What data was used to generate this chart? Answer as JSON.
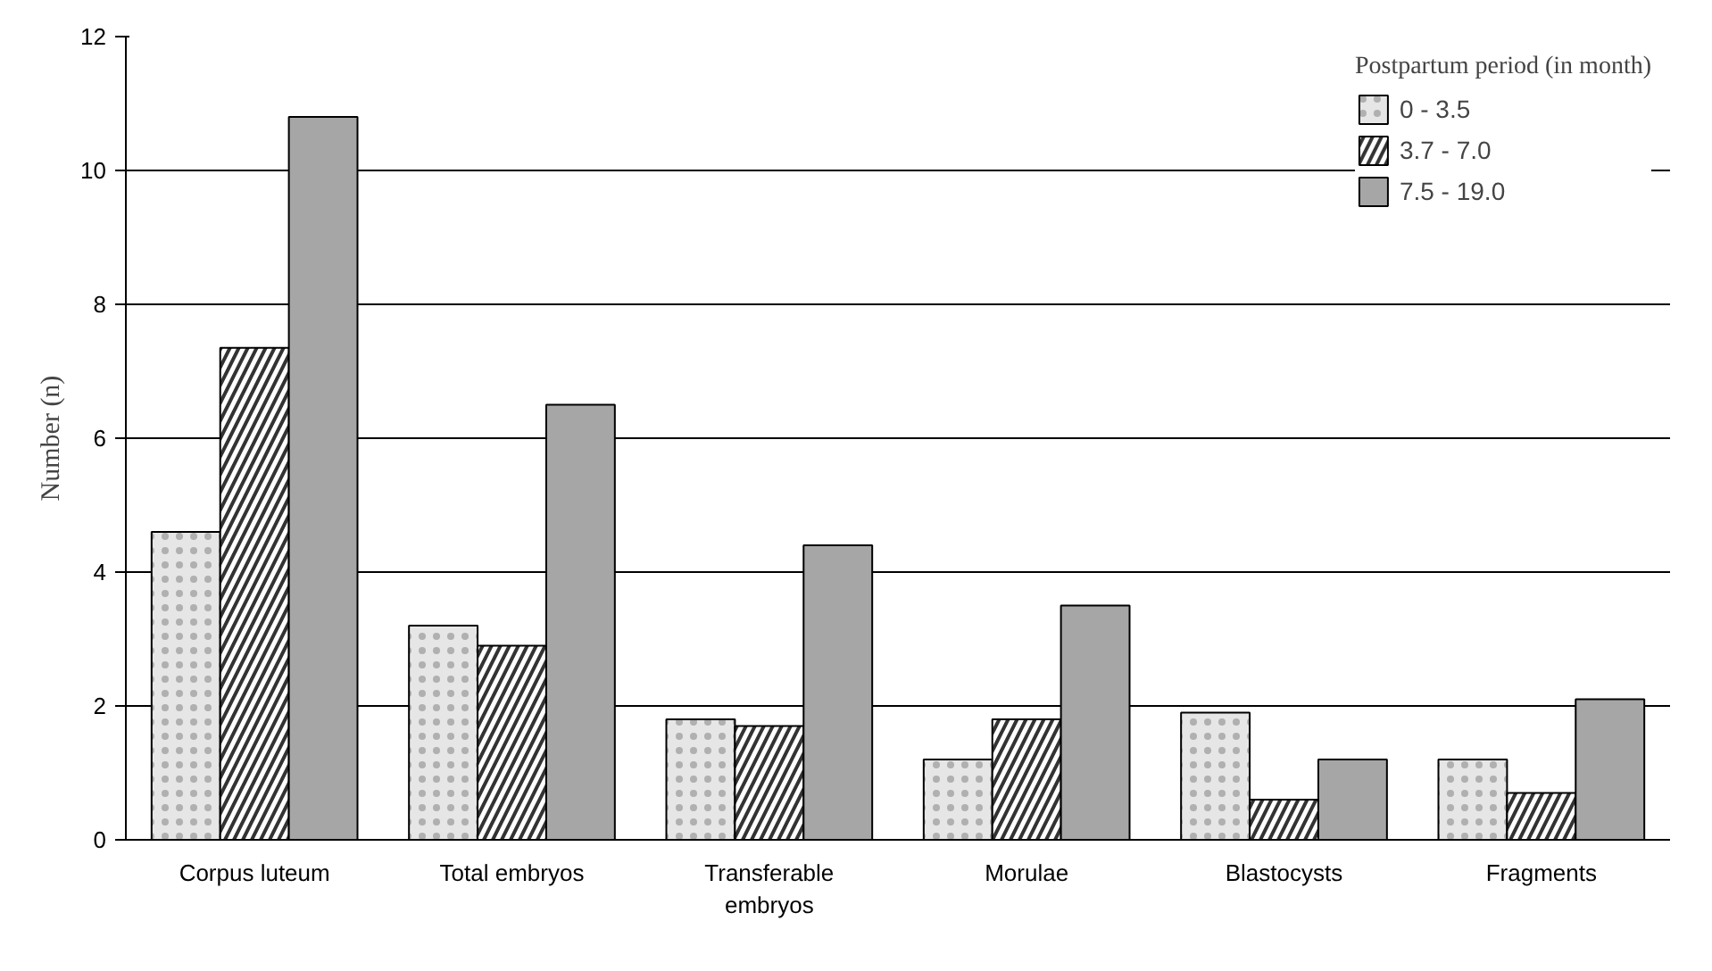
{
  "chart_data": {
    "type": "bar",
    "ylabel": "Number (n)",
    "legend_title": "Postpartum period (in month)",
    "categories": [
      "Corpus luteum",
      "Total embryos",
      "Transferable embryos",
      "Morulae",
      "Blastocysts",
      "Fragments"
    ],
    "series": [
      {
        "name": "0 - 3.5",
        "color": "#e6e6e6",
        "values": [
          4.6,
          3.2,
          1.8,
          1.2,
          1.9,
          1.2
        ]
      },
      {
        "name": "3.7 - 7.0",
        "color": "#333333",
        "values": [
          7.35,
          2.9,
          1.7,
          1.8,
          0.6,
          0.7
        ]
      },
      {
        "name": "7.5 - 19.0",
        "color": "#a6a6a6",
        "values": [
          10.8,
          6.5,
          4.4,
          3.5,
          1.2,
          2.1
        ]
      }
    ],
    "ylim": [
      0,
      12
    ],
    "yticks": [
      0,
      2,
      4,
      6,
      8,
      10,
      12
    ],
    "grid": "y",
    "legend": "top right"
  }
}
